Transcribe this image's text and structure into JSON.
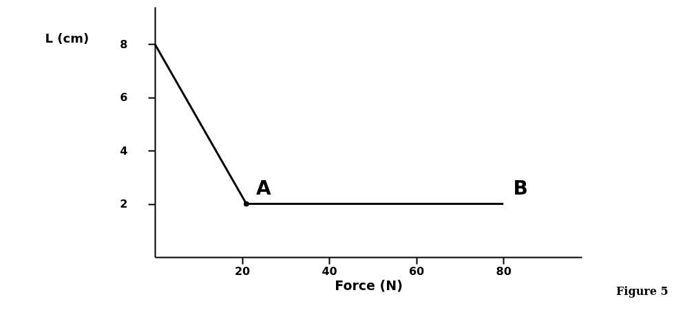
{
  "chart_data": {
    "type": "line",
    "xlabel": "Force (N)",
    "ylabel": "L (cm)",
    "x": [
      0,
      21,
      80
    ],
    "series": [
      {
        "color": "#000000",
        "values": [
          8,
          2,
          2
        ],
        "marker": "none"
      },
      {
        "type": "scatter",
        "color": "#000000",
        "x": [
          21
        ],
        "values": [
          2
        ],
        "marker": "circle"
      }
    ],
    "xlim": [
      0,
      98
    ],
    "ylim": [
      0,
      9.4
    ],
    "xticks": [
      20,
      40,
      60,
      80
    ],
    "yticks": [
      2,
      4,
      6,
      8
    ],
    "line_style": "solid",
    "annotations": [
      {
        "text": "A",
        "x": 21,
        "y": 2
      },
      {
        "text": "B",
        "x": 80,
        "y": 2
      },
      "Figure 5"
    ]
  }
}
